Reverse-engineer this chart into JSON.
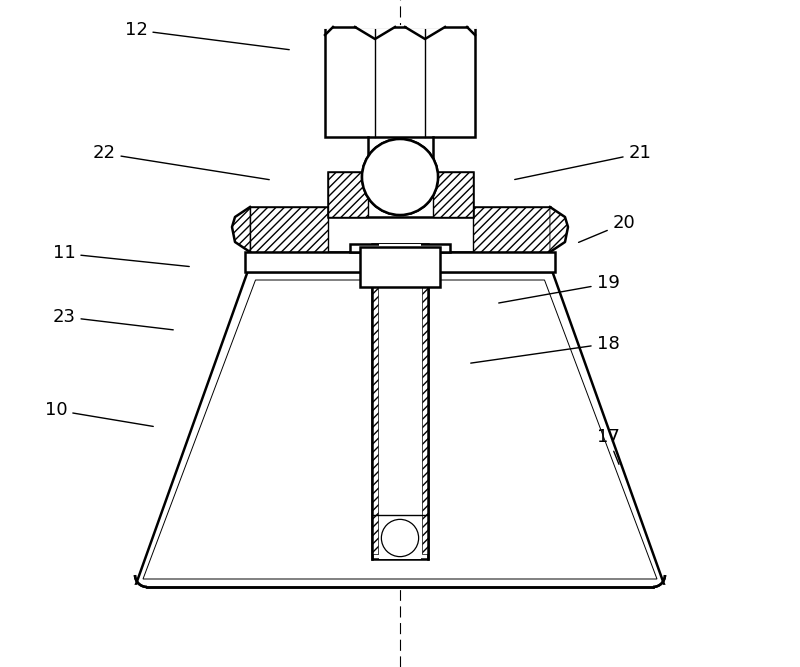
{
  "background_color": "#ffffff",
  "line_color": "#000000",
  "label_fontsize": 13,
  "label_targets": {
    "12": {
      "lpos": [
        0.17,
        0.955
      ],
      "tpos": [
        0.365,
        0.925
      ]
    },
    "22": {
      "lpos": [
        0.13,
        0.77
      ],
      "tpos": [
        0.34,
        0.73
      ]
    },
    "11": {
      "lpos": [
        0.08,
        0.62
      ],
      "tpos": [
        0.24,
        0.6
      ]
    },
    "23": {
      "lpos": [
        0.08,
        0.525
      ],
      "tpos": [
        0.22,
        0.505
      ]
    },
    "10": {
      "lpos": [
        0.07,
        0.385
      ],
      "tpos": [
        0.195,
        0.36
      ]
    },
    "21": {
      "lpos": [
        0.8,
        0.77
      ],
      "tpos": [
        0.64,
        0.73
      ]
    },
    "20": {
      "lpos": [
        0.78,
        0.665
      ],
      "tpos": [
        0.72,
        0.635
      ]
    },
    "19": {
      "lpos": [
        0.76,
        0.575
      ],
      "tpos": [
        0.62,
        0.545
      ]
    },
    "18": {
      "lpos": [
        0.76,
        0.485
      ],
      "tpos": [
        0.585,
        0.455
      ]
    },
    "17": {
      "lpos": [
        0.76,
        0.345
      ],
      "tpos": [
        0.775,
        0.3
      ]
    }
  }
}
